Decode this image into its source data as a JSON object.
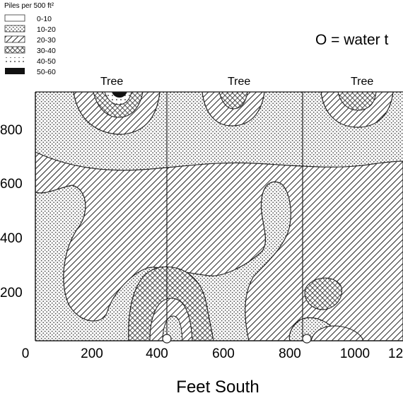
{
  "legend": {
    "title": "Piles per 500 ft²",
    "items": [
      {
        "label": "0-10",
        "pattern": "none"
      },
      {
        "label": "10-20",
        "pattern": "light-dots"
      },
      {
        "label": "20-30",
        "pattern": "hatch"
      },
      {
        "label": "30-40",
        "pattern": "crosshatch"
      },
      {
        "label": "40-50",
        "pattern": "dotted"
      },
      {
        "label": "50-60",
        "pattern": "solid"
      }
    ]
  },
  "note": "O = water t",
  "tree_labels": [
    "Tree",
    "Tree",
    "Tree"
  ],
  "x_axis": {
    "title": "Feet South",
    "ticks": [
      "0",
      "200",
      "400",
      "600",
      "800",
      "1000",
      "12"
    ]
  },
  "y_axis": {
    "ticks": [
      "800",
      "600",
      "400",
      "200"
    ]
  },
  "colors": {
    "ink": "#1a1a1a",
    "background": "#ffffff"
  }
}
